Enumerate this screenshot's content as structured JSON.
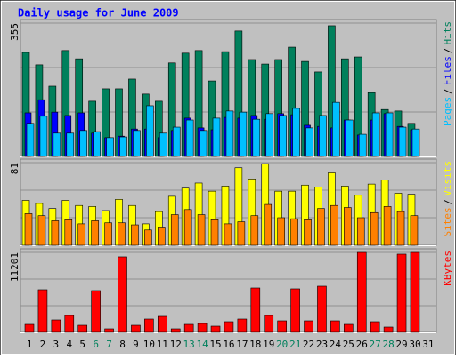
{
  "chart_data": [
    {
      "type": "bar",
      "title": "Daily usage for June 2009",
      "separator": "/",
      "ylim": [
        0,
        355
      ],
      "yticks": [
        355
      ],
      "series": [
        {
          "name": "Hits",
          "color": "#00805c",
          "values": [
            277,
            244,
            187,
            282,
            260,
            147,
            180,
            180,
            206,
            166,
            147,
            249,
            275,
            282,
            201,
            279,
            334,
            258,
            246,
            258,
            291,
            253,
            225,
            348,
            260,
            265,
            170,
            125,
            121,
            88,
            null
          ]
        },
        {
          "name": "Files",
          "color": "#0000ff",
          "values": [
            116,
            151,
            118,
            109,
            116,
            62,
            50,
            54,
            73,
            73,
            50,
            69,
            102,
            76,
            71,
            104,
            102,
            109,
            99,
            114,
            111,
            83,
            80,
            76,
            97,
            57,
            97,
            114,
            80,
            71,
            null
          ]
        },
        {
          "name": "Pages",
          "color": "#00c0ff",
          "values": [
            88,
            107,
            62,
            62,
            69,
            66,
            50,
            52,
            69,
            135,
            62,
            78,
            97,
            69,
            102,
            121,
            118,
            99,
            114,
            109,
            128,
            76,
            109,
            144,
            97,
            59,
            116,
            116,
            78,
            73,
            null
          ]
        }
      ]
    },
    {
      "type": "bar",
      "separator": "/",
      "ylim": [
        0,
        81
      ],
      "yticks": [
        81
      ],
      "series": [
        {
          "name": "Visits",
          "color": "#ffff00",
          "values": [
            44,
            41,
            36,
            44,
            39,
            38,
            34,
            45,
            39,
            21,
            33,
            48,
            56,
            61,
            53,
            58,
            76,
            65,
            80,
            53,
            53,
            59,
            57,
            71,
            58,
            49,
            60,
            64,
            51,
            50,
            null
          ]
        },
        {
          "name": "Sites",
          "color": "#ff8000",
          "values": [
            31,
            29,
            24,
            25,
            21,
            24,
            22,
            22,
            20,
            15,
            17,
            30,
            35,
            30,
            25,
            21,
            23,
            29,
            40,
            27,
            26,
            25,
            36,
            39,
            37,
            27,
            32,
            38,
            33,
            29,
            null
          ]
        }
      ]
    },
    {
      "type": "bar",
      "ylim": [
        0,
        11201
      ],
      "yticks": [
        11201
      ],
      "categories": [
        "1",
        "2",
        "3",
        "4",
        "5",
        "6",
        "7",
        "8",
        "9",
        "10",
        "11",
        "12",
        "13",
        "14",
        "15",
        "16",
        "17",
        "18",
        "19",
        "20",
        "21",
        "22",
        "23",
        "24",
        "25",
        "26",
        "27",
        "28",
        "29",
        "30",
        "31"
      ],
      "category_colors": [
        "#000000",
        "#000000",
        "#000000",
        "#000000",
        "#000000",
        "#00805c",
        "#00805c",
        "#000000",
        "#000000",
        "#000000",
        "#000000",
        "#000000",
        "#00805c",
        "#00805c",
        "#000000",
        "#000000",
        "#000000",
        "#000000",
        "#000000",
        "#00805c",
        "#00805c",
        "#000000",
        "#000000",
        "#000000",
        "#000000",
        "#000000",
        "#00805c",
        "#00805c",
        "#000000",
        "#000000",
        "#000000"
      ],
      "series": [
        {
          "name": "KBytes",
          "color": "#ff0000",
          "values": [
            1120,
            5975,
            1743,
            2365,
            995,
            5850,
            498,
            10582,
            995,
            1867,
            2241,
            498,
            1120,
            1245,
            871,
            1494,
            1867,
            6224,
            2365,
            1618,
            6100,
            1618,
            6473,
            1618,
            1120,
            11201,
            1494,
            747,
            10956,
            11201,
            null
          ]
        }
      ]
    }
  ]
}
